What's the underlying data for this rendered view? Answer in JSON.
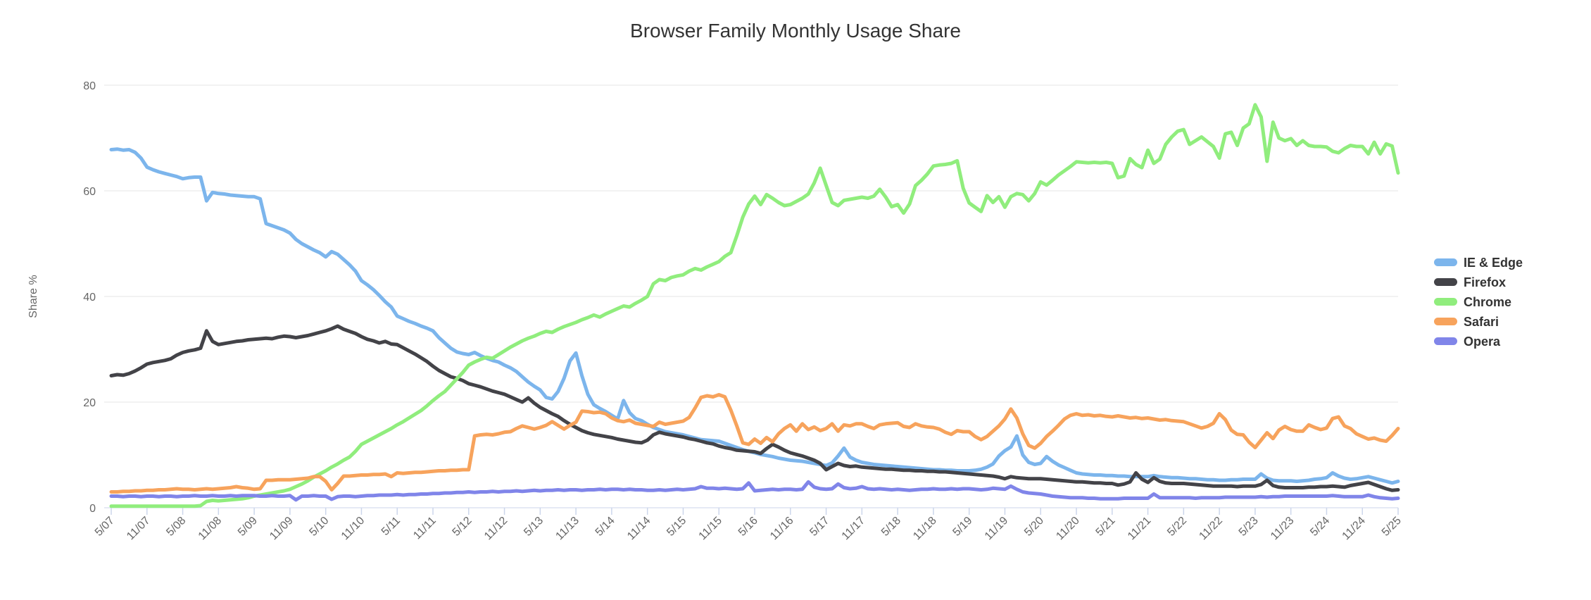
{
  "chart_data": {
    "type": "line",
    "title": "Browser Family Monthly Usage Share",
    "ylabel": "Share %",
    "ylim": [
      0,
      80
    ],
    "yticks": [
      0,
      20,
      40,
      60,
      80
    ],
    "x_start": "5/07",
    "x_end": "5/25",
    "x_tick_every_months": 6,
    "x_tick_labels": [
      "5/07",
      "11/07",
      "5/08",
      "11/08",
      "5/09",
      "11/09",
      "5/10",
      "11/10",
      "5/11",
      "11/11",
      "5/12",
      "11/12",
      "5/13",
      "11/13",
      "5/14",
      "11/14",
      "5/15",
      "11/15",
      "5/16",
      "11/16",
      "5/17",
      "11/17",
      "5/18",
      "11/18",
      "5/19",
      "11/19",
      "5/20",
      "11/20",
      "5/21",
      "11/21",
      "5/22",
      "11/22",
      "5/23",
      "11/23",
      "5/24",
      "11/24",
      "5/25"
    ],
    "legend_position": "right",
    "grid": true,
    "series": [
      {
        "name": "IE & Edge",
        "color": "#7cb5ec",
        "values": [
          67.8,
          67.9,
          67.7,
          67.8,
          67.3,
          66.2,
          64.5,
          64.0,
          63.6,
          63.3,
          63.0,
          62.7,
          62.3,
          62.5,
          62.6,
          62.6,
          58.1,
          59.7,
          59.5,
          59.4,
          59.2,
          59.1,
          59.0,
          58.9,
          58.9,
          58.5,
          53.8,
          53.4,
          53.0,
          52.6,
          52.0,
          50.8,
          50.0,
          49.4,
          48.8,
          48.3,
          47.5,
          48.5,
          48.0,
          47.0,
          46.0,
          44.8,
          43.0,
          42.2,
          41.3,
          40.2,
          39.0,
          38.0,
          36.3,
          35.8,
          35.3,
          34.9,
          34.4,
          34.0,
          33.5,
          32.2,
          31.2,
          30.2,
          29.5,
          29.2,
          29.0,
          29.4,
          28.8,
          28.3,
          27.9,
          27.6,
          27.0,
          26.5,
          25.8,
          24.8,
          23.8,
          23.0,
          22.3,
          20.9,
          20.6,
          22.0,
          24.5,
          27.8,
          29.3,
          25.0,
          21.5,
          19.5,
          18.8,
          18.2,
          17.5,
          16.8,
          20.3,
          18.0,
          16.9,
          16.5,
          15.8,
          15.2,
          14.8,
          14.4,
          14.2,
          14.0,
          13.8,
          13.5,
          13.2,
          12.9,
          12.8,
          12.7,
          12.6,
          12.2,
          11.8,
          11.4,
          11.0,
          10.7,
          10.4,
          10.1,
          9.9,
          9.7,
          9.4,
          9.2,
          9.0,
          8.9,
          8.8,
          8.6,
          8.4,
          8.2,
          8.0,
          8.5,
          9.8,
          11.3,
          9.6,
          9.0,
          8.6,
          8.4,
          8.2,
          8.1,
          8.0,
          7.9,
          7.8,
          7.7,
          7.6,
          7.5,
          7.4,
          7.3,
          7.2,
          7.2,
          7.1,
          7.1,
          7.0,
          7.0,
          7.0,
          7.1,
          7.3,
          7.7,
          8.3,
          9.8,
          10.8,
          11.5,
          13.6,
          10.0,
          8.6,
          8.2,
          8.4,
          9.7,
          8.8,
          8.1,
          7.6,
          7.1,
          6.6,
          6.4,
          6.3,
          6.2,
          6.2,
          6.1,
          6.1,
          6.0,
          6.0,
          5.9,
          5.9,
          5.9,
          5.9,
          6.1,
          5.9,
          5.8,
          5.7,
          5.7,
          5.6,
          5.5,
          5.5,
          5.4,
          5.3,
          5.3,
          5.2,
          5.2,
          5.3,
          5.3,
          5.4,
          5.4,
          5.4,
          6.4,
          5.6,
          5.2,
          5.1,
          5.1,
          5.1,
          5.0,
          5.1,
          5.2,
          5.4,
          5.5,
          5.7,
          6.6,
          6.0,
          5.6,
          5.4,
          5.5,
          5.7,
          5.9,
          5.6,
          5.3,
          5.0,
          4.7,
          5.0
        ]
      },
      {
        "name": "Firefox",
        "color": "#434348",
        "values": [
          25.0,
          25.2,
          25.1,
          25.4,
          25.9,
          26.5,
          27.2,
          27.5,
          27.7,
          27.9,
          28.2,
          28.9,
          29.4,
          29.7,
          29.9,
          30.2,
          33.5,
          31.5,
          30.9,
          31.1,
          31.3,
          31.5,
          31.6,
          31.8,
          31.9,
          32.0,
          32.1,
          32.0,
          32.3,
          32.5,
          32.4,
          32.2,
          32.4,
          32.6,
          32.9,
          33.2,
          33.5,
          33.9,
          34.4,
          33.8,
          33.4,
          33.0,
          32.4,
          31.9,
          31.6,
          31.2,
          31.5,
          31.0,
          30.9,
          30.3,
          29.7,
          29.1,
          28.4,
          27.7,
          26.8,
          26.0,
          25.4,
          24.8,
          24.5,
          24.1,
          23.5,
          23.2,
          22.9,
          22.5,
          22.1,
          21.8,
          21.5,
          21.0,
          20.5,
          20.0,
          20.8,
          19.8,
          19.0,
          18.4,
          17.8,
          17.3,
          16.5,
          15.8,
          15.2,
          14.6,
          14.2,
          13.9,
          13.7,
          13.5,
          13.3,
          13.0,
          12.8,
          12.6,
          12.4,
          12.3,
          12.8,
          13.8,
          14.3,
          14.0,
          13.8,
          13.6,
          13.4,
          13.1,
          12.9,
          12.6,
          12.3,
          12.1,
          11.7,
          11.4,
          11.2,
          10.9,
          10.8,
          10.7,
          10.6,
          10.3,
          11.2,
          12.0,
          11.5,
          10.9,
          10.4,
          10.1,
          9.8,
          9.4,
          9.0,
          8.4,
          7.2,
          7.8,
          8.4,
          8.0,
          7.8,
          7.9,
          7.7,
          7.6,
          7.5,
          7.4,
          7.3,
          7.3,
          7.2,
          7.1,
          7.1,
          7.0,
          7.0,
          6.9,
          6.9,
          6.8,
          6.8,
          6.7,
          6.6,
          6.5,
          6.4,
          6.3,
          6.2,
          6.1,
          6.0,
          5.8,
          5.5,
          5.9,
          5.7,
          5.6,
          5.5,
          5.5,
          5.5,
          5.4,
          5.3,
          5.2,
          5.1,
          5.0,
          4.9,
          4.9,
          4.8,
          4.7,
          4.7,
          4.6,
          4.6,
          4.3,
          4.5,
          4.9,
          6.6,
          5.4,
          4.8,
          5.7,
          5.0,
          4.7,
          4.6,
          4.6,
          4.6,
          4.5,
          4.4,
          4.3,
          4.2,
          4.1,
          4.1,
          4.1,
          4.1,
          4.0,
          4.1,
          4.1,
          4.1,
          4.4,
          5.2,
          4.2,
          3.9,
          3.8,
          3.8,
          3.8,
          3.8,
          3.9,
          3.9,
          4.0,
          4.0,
          4.1,
          4.0,
          3.9,
          4.2,
          4.4,
          4.6,
          4.8,
          4.4,
          4.0,
          3.6,
          3.3,
          3.4
        ]
      },
      {
        "name": "Chrome",
        "color": "#90ed7d",
        "values": [
          0.3,
          0.3,
          0.3,
          0.3,
          0.3,
          0.3,
          0.3,
          0.3,
          0.3,
          0.3,
          0.3,
          0.3,
          0.3,
          0.3,
          0.3,
          0.4,
          1.2,
          1.4,
          1.3,
          1.4,
          1.5,
          1.6,
          1.7,
          1.9,
          2.2,
          2.4,
          2.6,
          2.8,
          3.0,
          3.2,
          3.5,
          4.0,
          4.5,
          5.1,
          5.8,
          6.4,
          7.0,
          7.7,
          8.3,
          9.0,
          9.6,
          10.7,
          12.0,
          12.6,
          13.2,
          13.8,
          14.4,
          15.0,
          15.7,
          16.3,
          17.0,
          17.7,
          18.4,
          19.3,
          20.3,
          21.2,
          22.0,
          23.2,
          24.4,
          25.6,
          27.0,
          27.6,
          28.1,
          28.5,
          28.3,
          29.0,
          29.7,
          30.4,
          31.0,
          31.6,
          32.1,
          32.5,
          33.0,
          33.4,
          33.2,
          33.8,
          34.3,
          34.7,
          35.1,
          35.6,
          36.0,
          36.5,
          36.1,
          36.7,
          37.2,
          37.7,
          38.2,
          38.0,
          38.7,
          39.3,
          40.0,
          42.4,
          43.2,
          43.0,
          43.6,
          43.9,
          44.1,
          44.8,
          45.3,
          45.0,
          45.6,
          46.1,
          46.6,
          47.6,
          48.3,
          51.5,
          55.0,
          57.5,
          59.0,
          57.4,
          59.3,
          58.6,
          57.8,
          57.2,
          57.4,
          58.0,
          58.6,
          59.4,
          61.5,
          64.3,
          61.0,
          57.8,
          57.2,
          58.2,
          58.4,
          58.6,
          58.8,
          58.6,
          59.0,
          60.3,
          58.8,
          57.0,
          57.4,
          55.8,
          57.5,
          61.0,
          62.0,
          63.2,
          64.7,
          64.9,
          65.0,
          65.2,
          65.7,
          60.5,
          57.7,
          56.9,
          56.1,
          59.1,
          57.8,
          58.9,
          56.9,
          58.9,
          59.5,
          59.3,
          58.1,
          59.5,
          61.7,
          61.1,
          62.0,
          63.0,
          63.8,
          64.6,
          65.5,
          65.4,
          65.3,
          65.4,
          65.3,
          65.4,
          65.2,
          62.5,
          62.8,
          66.1,
          65.0,
          64.4,
          67.7,
          65.2,
          66.0,
          68.8,
          70.2,
          71.3,
          71.6,
          68.8,
          69.5,
          70.2,
          69.3,
          68.4,
          66.2,
          70.8,
          71.1,
          68.6,
          71.9,
          72.7,
          76.3,
          74.0,
          65.6,
          73.0,
          70.0,
          69.5,
          69.9,
          68.6,
          69.5,
          68.6,
          68.4,
          68.4,
          68.3,
          67.5,
          67.2,
          68.0,
          68.6,
          68.4,
          68.4,
          67.0,
          69.2,
          67.0,
          68.9,
          68.5,
          63.4
        ]
      },
      {
        "name": "Safari",
        "color": "#f7a35c",
        "values": [
          3.0,
          3.0,
          3.1,
          3.1,
          3.2,
          3.2,
          3.3,
          3.3,
          3.4,
          3.4,
          3.5,
          3.6,
          3.5,
          3.5,
          3.4,
          3.5,
          3.6,
          3.5,
          3.6,
          3.7,
          3.8,
          4.0,
          3.8,
          3.7,
          3.5,
          3.6,
          5.2,
          5.2,
          5.3,
          5.3,
          5.3,
          5.4,
          5.5,
          5.6,
          5.9,
          5.9,
          5.0,
          3.4,
          4.6,
          6.0,
          6.0,
          6.1,
          6.2,
          6.2,
          6.3,
          6.3,
          6.4,
          5.9,
          6.6,
          6.5,
          6.6,
          6.7,
          6.7,
          6.8,
          6.9,
          7.0,
          7.0,
          7.1,
          7.1,
          7.2,
          7.2,
          13.6,
          13.8,
          13.9,
          13.8,
          14.0,
          14.3,
          14.4,
          15.0,
          15.5,
          15.2,
          14.9,
          15.2,
          15.6,
          16.3,
          15.6,
          14.9,
          15.6,
          16.2,
          18.3,
          18.2,
          18.0,
          18.1,
          17.8,
          17.0,
          16.5,
          16.3,
          16.6,
          16.0,
          15.8,
          15.6,
          15.4,
          16.2,
          15.8,
          16.0,
          16.2,
          16.4,
          17.1,
          18.9,
          20.9,
          21.2,
          21.0,
          21.4,
          21.0,
          18.5,
          15.5,
          12.3,
          12.0,
          13.0,
          12.2,
          13.3,
          12.5,
          14.0,
          15.0,
          15.7,
          14.5,
          15.9,
          14.8,
          15.3,
          14.6,
          15.0,
          15.9,
          14.5,
          15.7,
          15.5,
          15.9,
          15.9,
          15.4,
          15.0,
          15.7,
          15.9,
          16.0,
          16.1,
          15.4,
          15.2,
          15.9,
          15.5,
          15.3,
          15.2,
          14.9,
          14.3,
          13.9,
          14.6,
          14.4,
          14.4,
          13.5,
          12.9,
          13.5,
          14.5,
          15.5,
          16.8,
          18.7,
          17.0,
          14.0,
          11.8,
          11.3,
          12.2,
          13.5,
          14.5,
          15.6,
          16.8,
          17.5,
          17.8,
          17.5,
          17.6,
          17.4,
          17.5,
          17.3,
          17.2,
          17.4,
          17.2,
          17.0,
          17.1,
          16.9,
          17.0,
          16.8,
          16.6,
          16.7,
          16.5,
          16.4,
          16.3,
          15.9,
          15.5,
          15.1,
          15.4,
          16.0,
          17.8,
          16.7,
          14.7,
          13.9,
          13.8,
          12.4,
          11.4,
          12.8,
          14.2,
          13.1,
          14.7,
          15.4,
          14.8,
          14.5,
          14.5,
          15.7,
          15.2,
          14.8,
          15.1,
          16.9,
          17.2,
          15.5,
          15.0,
          14.0,
          13.5,
          13.0,
          13.2,
          12.8,
          12.6,
          13.7,
          15.0
        ]
      },
      {
        "name": "Opera",
        "color": "#8085e9",
        "values": [
          2.2,
          2.2,
          2.1,
          2.2,
          2.2,
          2.1,
          2.2,
          2.2,
          2.1,
          2.2,
          2.2,
          2.1,
          2.2,
          2.2,
          2.3,
          2.2,
          2.2,
          2.3,
          2.2,
          2.2,
          2.3,
          2.2,
          2.3,
          2.3,
          2.3,
          2.2,
          2.2,
          2.3,
          2.2,
          2.2,
          2.3,
          1.5,
          2.2,
          2.2,
          2.3,
          2.2,
          2.2,
          1.6,
          2.1,
          2.2,
          2.2,
          2.1,
          2.2,
          2.3,
          2.3,
          2.4,
          2.4,
          2.4,
          2.5,
          2.4,
          2.5,
          2.5,
          2.6,
          2.6,
          2.7,
          2.7,
          2.8,
          2.8,
          2.9,
          2.9,
          3.0,
          2.9,
          3.0,
          3.0,
          3.1,
          3.0,
          3.1,
          3.1,
          3.2,
          3.1,
          3.2,
          3.3,
          3.2,
          3.3,
          3.3,
          3.4,
          3.3,
          3.4,
          3.4,
          3.3,
          3.4,
          3.4,
          3.5,
          3.4,
          3.5,
          3.5,
          3.4,
          3.5,
          3.4,
          3.4,
          3.3,
          3.3,
          3.4,
          3.3,
          3.4,
          3.5,
          3.4,
          3.5,
          3.6,
          4.0,
          3.7,
          3.7,
          3.6,
          3.7,
          3.6,
          3.5,
          3.6,
          4.7,
          3.2,
          3.3,
          3.4,
          3.5,
          3.4,
          3.5,
          3.5,
          3.4,
          3.5,
          4.9,
          3.9,
          3.6,
          3.5,
          3.6,
          4.5,
          3.8,
          3.6,
          3.7,
          4.0,
          3.6,
          3.5,
          3.6,
          3.5,
          3.4,
          3.5,
          3.4,
          3.3,
          3.4,
          3.5,
          3.5,
          3.6,
          3.5,
          3.5,
          3.6,
          3.5,
          3.6,
          3.6,
          3.5,
          3.4,
          3.5,
          3.7,
          3.6,
          3.5,
          4.1,
          3.5,
          3.0,
          2.8,
          2.7,
          2.6,
          2.4,
          2.2,
          2.1,
          2.0,
          1.9,
          1.9,
          1.9,
          1.8,
          1.8,
          1.7,
          1.7,
          1.7,
          1.7,
          1.8,
          1.8,
          1.8,
          1.8,
          1.8,
          2.6,
          1.9,
          1.9,
          1.9,
          1.9,
          1.9,
          1.9,
          1.8,
          1.9,
          1.9,
          1.9,
          1.9,
          2.0,
          2.0,
          2.0,
          2.0,
          2.0,
          2.0,
          2.1,
          2.0,
          2.1,
          2.1,
          2.2,
          2.2,
          2.2,
          2.2,
          2.2,
          2.2,
          2.2,
          2.2,
          2.3,
          2.2,
          2.1,
          2.1,
          2.1,
          2.1,
          2.4,
          2.1,
          1.9,
          1.8,
          1.7,
          1.8
        ]
      }
    ]
  },
  "style": {
    "grid_color": "#e6e6e6",
    "axis_line_color": "#ccd6eb",
    "label_color": "#666666",
    "title_color": "#333333",
    "background": "#ffffff"
  }
}
